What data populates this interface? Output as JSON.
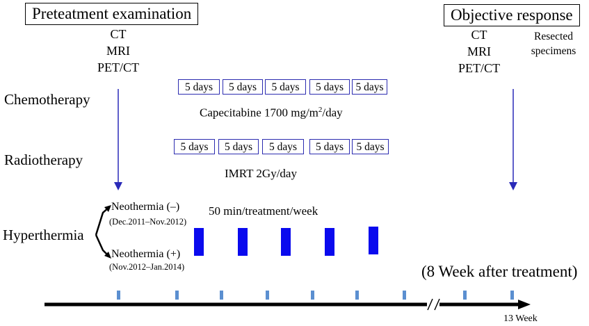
{
  "headers": {
    "pretreatment": "Preteatment examination",
    "objective": "Objective response"
  },
  "pre_modalities": [
    "CT",
    "MRI",
    "PET/CT"
  ],
  "post_modalities": [
    "CT",
    "MRI",
    "PET/CT"
  ],
  "resected": [
    "Resected",
    "specimens"
  ],
  "chemo": {
    "label": "Chemotherapy",
    "blocks": [
      "5 days",
      "5 days",
      "5 days",
      "5 days",
      "5 days"
    ],
    "drug_prefix": "Capecitabine 1700 mg/m",
    "drug_sup": "2",
    "drug_suffix": "/day"
  },
  "radio": {
    "label": "Radiotherapy",
    "blocks": [
      "5 days",
      "5 days",
      "5 days",
      "5 days",
      "5 days"
    ],
    "regimen": "IMRT 2Gy/day"
  },
  "hyper": {
    "label": "Hyperthermia",
    "group_neg": "Neothermia (–)",
    "group_neg_dates": "(Dec.2011–Nov.2012)",
    "group_pos": "Neothermia (+)",
    "group_pos_dates": "(Nov.2012–Jan.2014)",
    "schedule": "50 min/treatment/week",
    "sessions": 5
  },
  "timeline": {
    "after_note": "(8 Week after treatment)",
    "end_label": "13 Week",
    "tick_count": 9
  },
  "colors": {
    "arrow_blue": "#2a2ab8",
    "session_blue": "#0a0aee",
    "tick_blue": "#5b8fd0",
    "box_border": "#2b2bb0"
  }
}
